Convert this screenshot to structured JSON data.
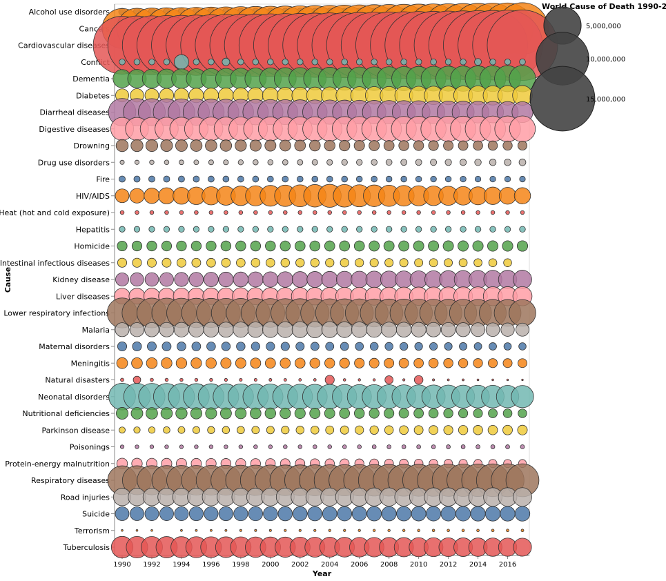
{
  "chart_data": {
    "type": "scatter",
    "mark": "bubble",
    "x_title": "Year",
    "y_title": "Cause",
    "x_range": [
      1990,
      2017
    ],
    "x_ticks": [
      1990,
      1992,
      1994,
      1996,
      1998,
      2000,
      2002,
      2004,
      2006,
      2008,
      2010,
      2012,
      2014,
      2016
    ],
    "legend_title": "World Cause of Death 1990-2...",
    "legend_entries": [
      {
        "label": "5,000,000",
        "value": 5000000
      },
      {
        "label": "10,000,000",
        "value": 10000000
      },
      {
        "label": "15,000,000",
        "value": 15000000
      }
    ],
    "palette": [
      "#4c78a8",
      "#f58518",
      "#e45756",
      "#72b7b2",
      "#54a24b",
      "#eeca3b",
      "#b279a2",
      "#ff9da6",
      "#9d755d",
      "#bab0ac"
    ],
    "categories": [
      "Alcohol use disorders",
      "Cancers",
      "Cardiovascular diseases",
      "Conflict",
      "Dementia",
      "Diabetes",
      "Diarrheal diseases",
      "Digestive diseases",
      "Drowning",
      "Drug use disorders",
      "Fire",
      "HIV/AIDS",
      "Heat (hot and cold exposure)",
      "Hepatitis",
      "Homicide",
      "Intestinal infectious diseases",
      "Kidney disease",
      "Liver diseases",
      "Lower respiratory infections",
      "Malaria",
      "Maternal disorders",
      "Meningitis",
      "Natural disasters",
      "Neonatal disorders",
      "Nutritional deficiencies",
      "Parkinson disease",
      "Poisonings",
      "Protein-energy malnutrition",
      "Respiratory diseases",
      "Road injuries",
      "Suicide",
      "Terrorism",
      "Tuberculosis"
    ],
    "series": [
      {
        "name": "Alcohol use disorders",
        "start": 170000,
        "end": 185000
      },
      {
        "name": "Cancers",
        "start": 5700000,
        "end": 9500000
      },
      {
        "name": "Cardiovascular diseases",
        "start": 12000000,
        "end": 17800000
      },
      {
        "name": "Conflict",
        "start": 130000,
        "end": 130000,
        "peaks": {
          "1994": 760000,
          "1997": 210000,
          "2014": 170000
        }
      },
      {
        "name": "Dementia",
        "start": 1200000,
        "end": 2500000
      },
      {
        "name": "Diabetes",
        "start": 620000,
        "end": 1400000
      },
      {
        "name": "Diarrheal diseases",
        "start": 2700000,
        "end": 1570000
      },
      {
        "name": "Digestive diseases",
        "start": 1880000,
        "end": 2400000
      },
      {
        "name": "Drowning",
        "start": 530000,
        "end": 300000
      },
      {
        "name": "Drug use disorders",
        "start": 65000,
        "end": 166000
      },
      {
        "name": "Fire",
        "start": 140000,
        "end": 120000
      },
      {
        "name": "HIV/AIDS",
        "start": 680000,
        "end": 950000,
        "peak_year": 2004,
        "peak": 1900000
      },
      {
        "name": "Heat (hot and cold exposure)",
        "start": 55000,
        "end": 53000
      },
      {
        "name": "Hepatitis",
        "start": 120000,
        "end": 125000
      },
      {
        "name": "Homicide",
        "start": 350000,
        "end": 400000
      },
      {
        "name": "Intestinal infectious diseases",
        "start": 300000,
        "end": 230000,
        "missing_years": [
          2017
        ]
      },
      {
        "name": "Kidney disease",
        "start": 620000,
        "end": 1230000
      },
      {
        "name": "Liver diseases",
        "start": 900000,
        "end": 1320000
      },
      {
        "name": "Lower respiratory infections",
        "start": 3220000,
        "end": 2560000
      },
      {
        "name": "Malaria",
        "start": 700000,
        "end": 620000,
        "peak_year": 2003,
        "peak": 940000
      },
      {
        "name": "Maternal disorders",
        "start": 300000,
        "end": 195000
      },
      {
        "name": "Meningitis",
        "start": 430000,
        "end": 290000
      },
      {
        "name": "Natural disasters",
        "start": 40000,
        "end": 10000,
        "peaks": {
          "1991": 200000,
          "2004": 300000,
          "2008": 240000,
          "2010": 270000
        }
      },
      {
        "name": "Neonatal disorders",
        "start": 2560000,
        "end": 1780000
      },
      {
        "name": "Nutritional deficiencies",
        "start": 500000,
        "end": 270000
      },
      {
        "name": "Parkinson disease",
        "start": 140000,
        "end": 340000
      },
      {
        "name": "Poisonings",
        "start": 50000,
        "end": 60000
      },
      {
        "name": "Protein-energy malnutrition",
        "start": 410000,
        "end": 230000
      },
      {
        "name": "Respiratory diseases",
        "start": 3000000,
        "end": 3900000
      },
      {
        "name": "Road injuries",
        "start": 1100000,
        "end": 1240000
      },
      {
        "name": "Suicide",
        "start": 680000,
        "end": 790000
      },
      {
        "name": "Terrorism",
        "start": 12000,
        "end": 26000,
        "gaps": [
          1993
        ]
      },
      {
        "name": "Tuberculosis",
        "start": 1680000,
        "end": 1180000
      }
    ]
  }
}
